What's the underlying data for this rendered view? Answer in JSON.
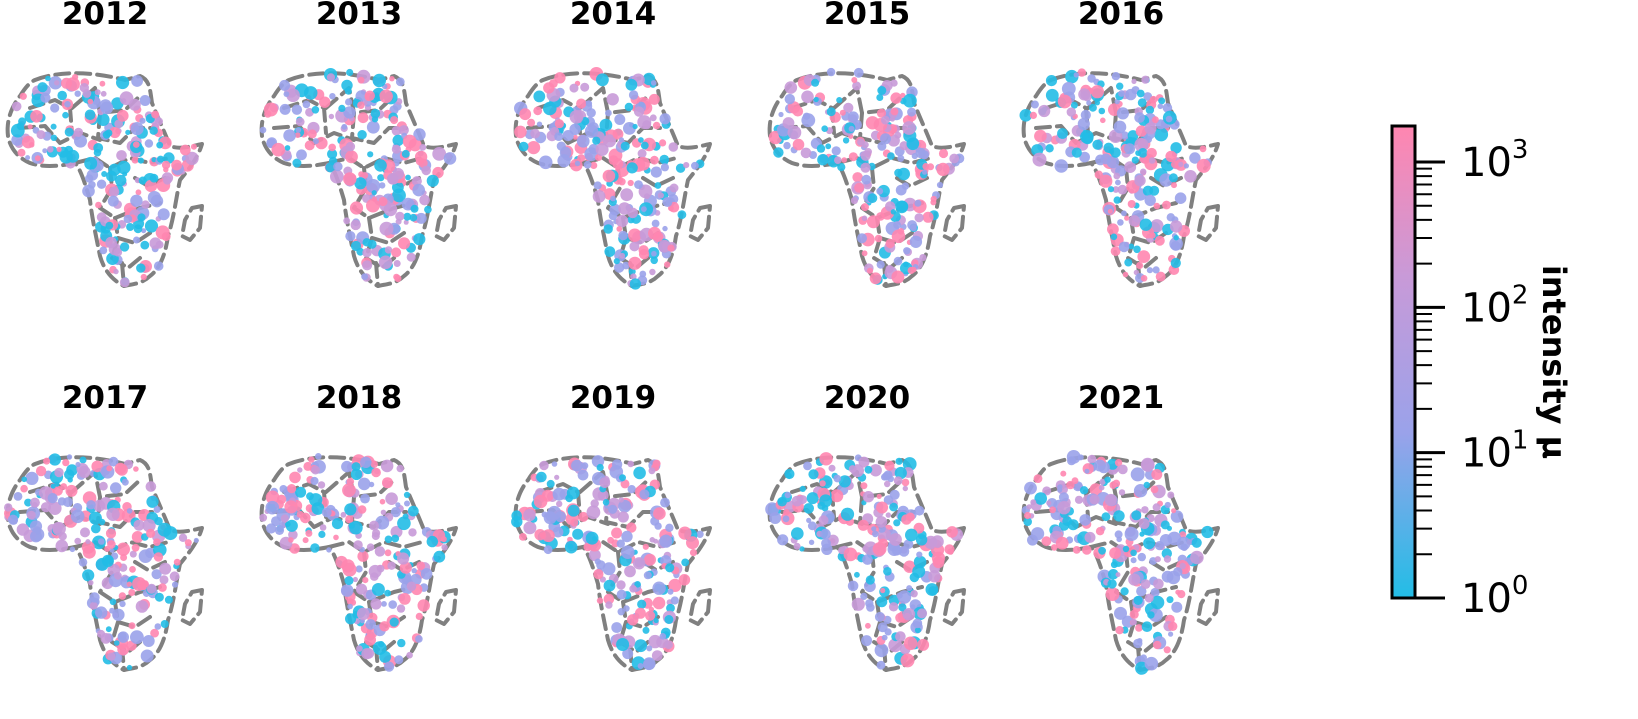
{
  "chart_data": {
    "type": "scatter",
    "panels": [
      {
        "title": "2012"
      },
      {
        "title": "2013"
      },
      {
        "title": "2014"
      },
      {
        "title": "2015"
      },
      {
        "title": "2016"
      },
      {
        "title": "2017"
      },
      {
        "title": "2018"
      },
      {
        "title": "2019"
      },
      {
        "title": "2020"
      },
      {
        "title": "2021"
      }
    ],
    "colorbar": {
      "label": "intensity μ",
      "scale": "log",
      "range": [
        1,
        1000
      ],
      "ticks": [
        {
          "base": "10",
          "exp": "0"
        },
        {
          "base": "10",
          "exp": "1"
        },
        {
          "base": "10",
          "exp": "2"
        },
        {
          "base": "10",
          "exp": "3"
        }
      ],
      "colors": [
        "#22bde6",
        "#9aa2ea",
        "#c89ad8",
        "#ff86b0"
      ]
    },
    "border_color": "#808080"
  }
}
